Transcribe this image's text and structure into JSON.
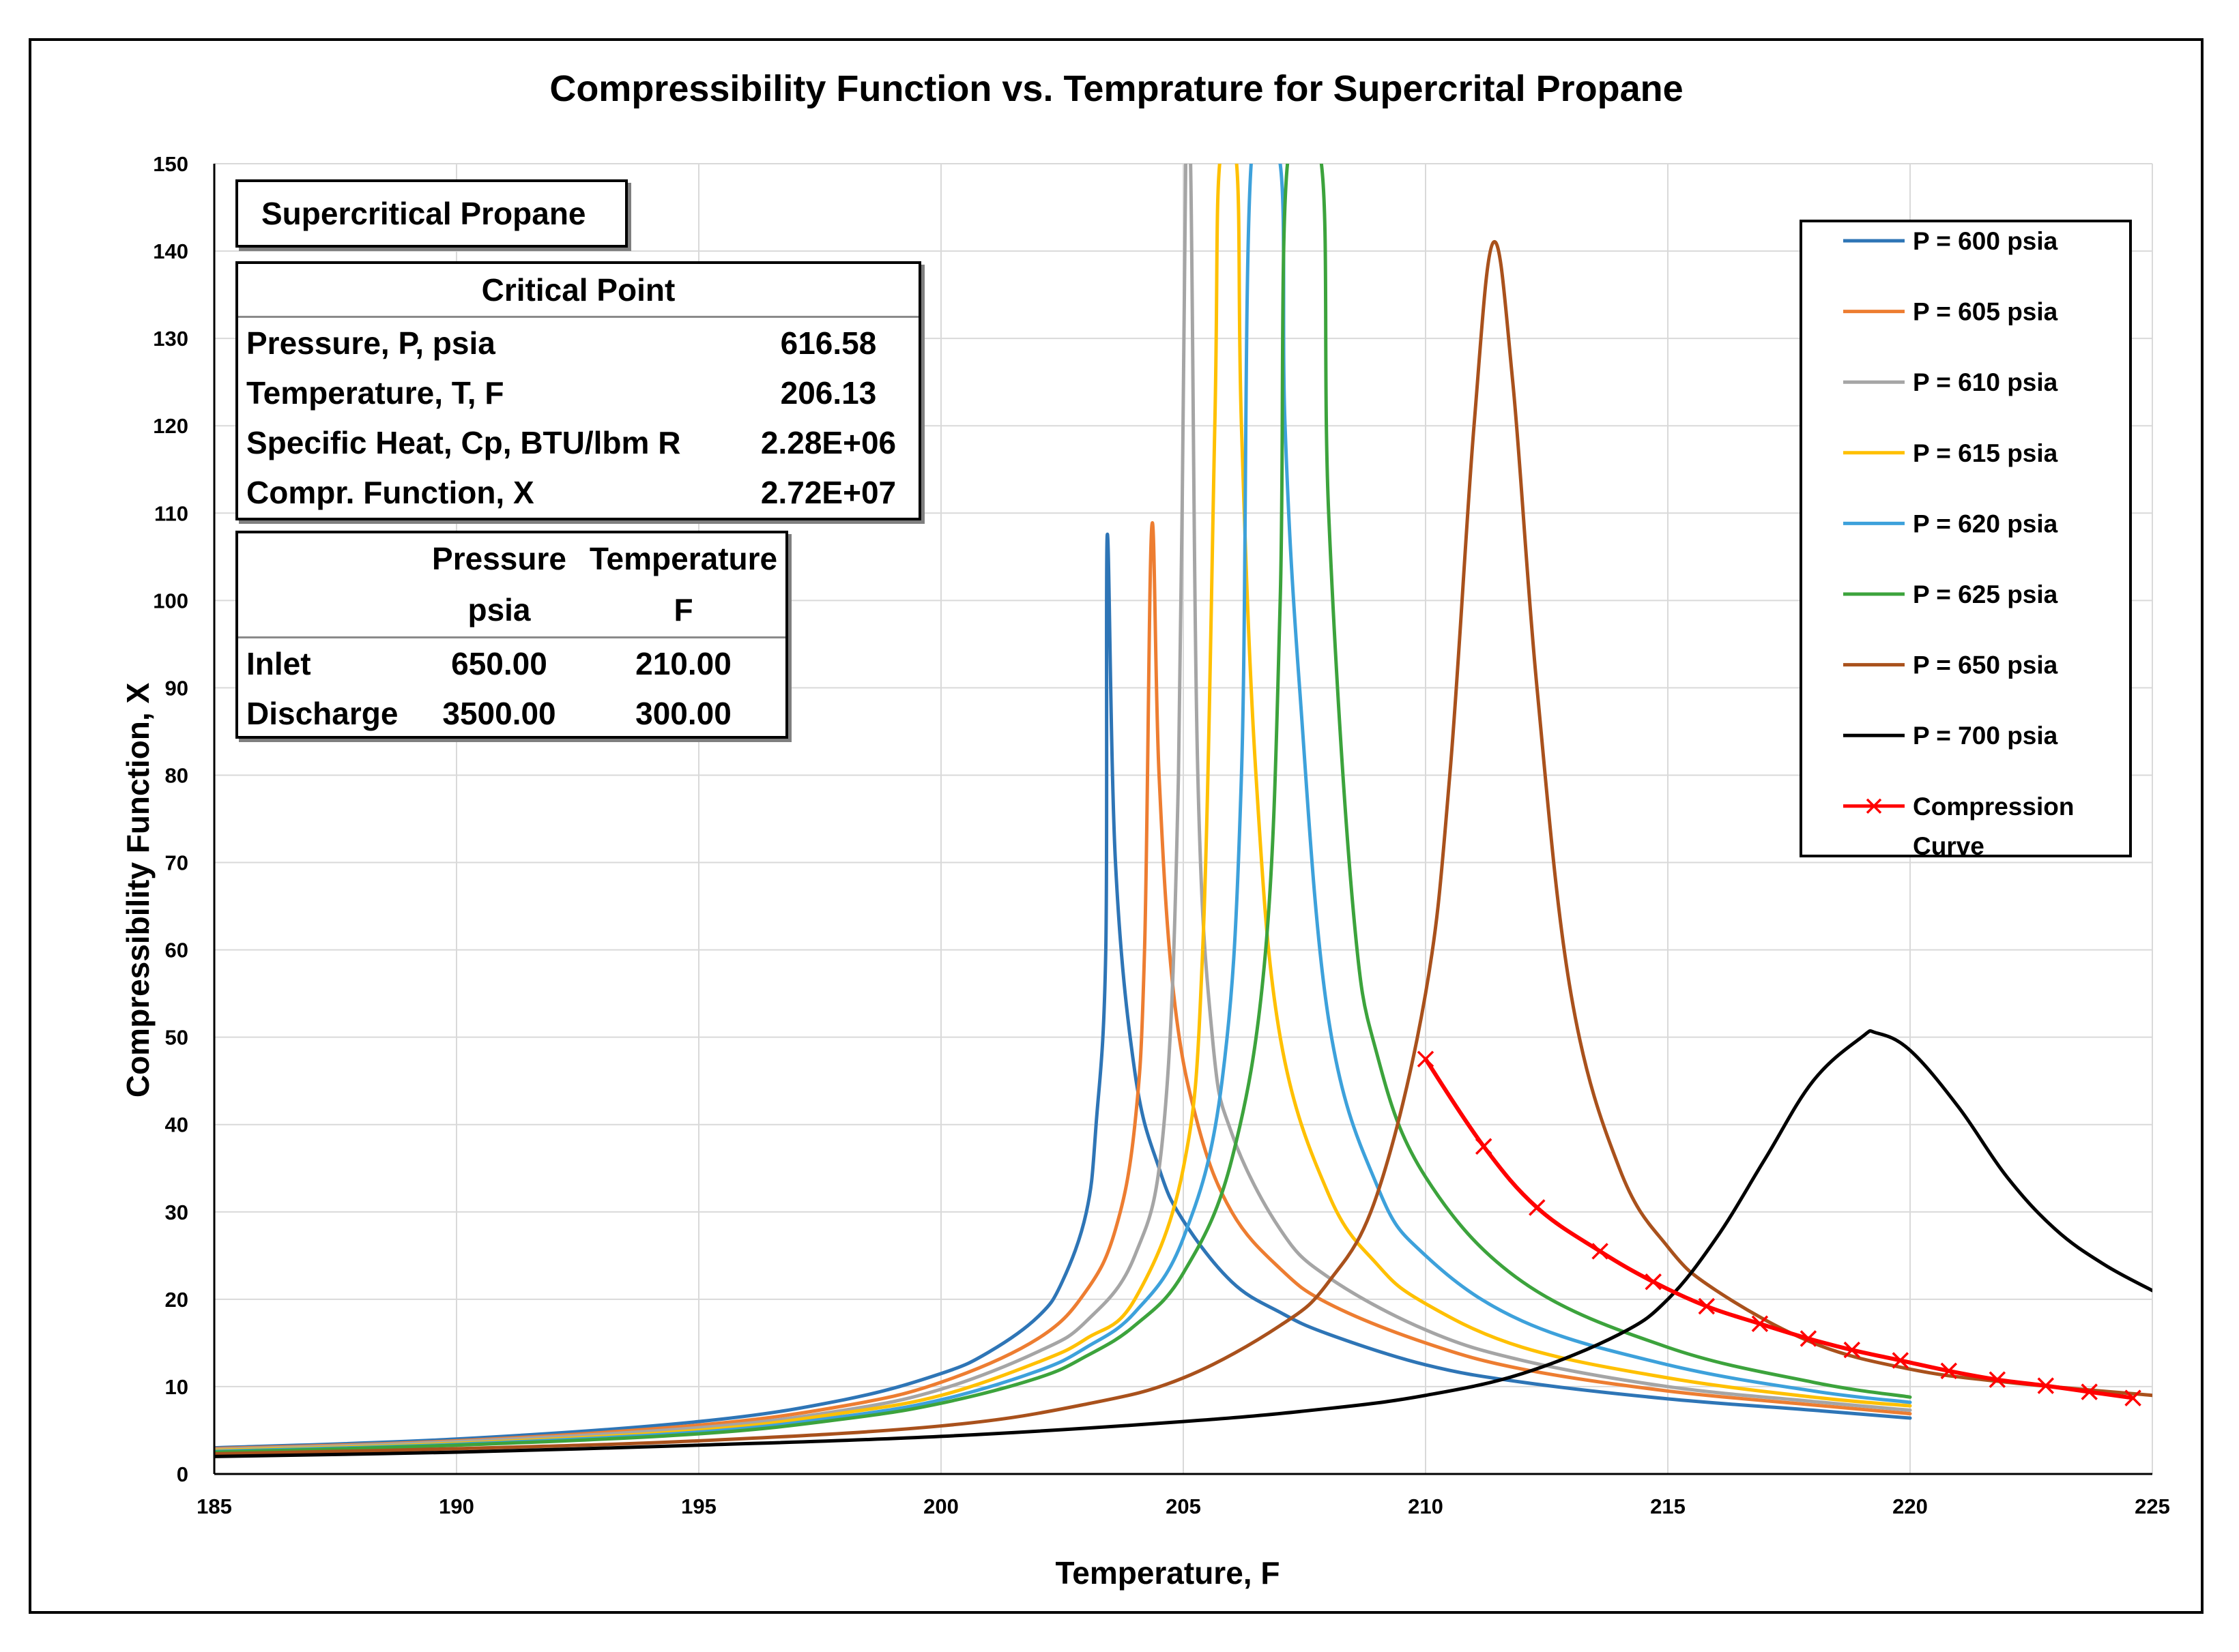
{
  "chart_data": {
    "type": "line",
    "title": "Compressibility Function vs. Temprature for Supercrital Propane",
    "xlabel": "Temperature, F",
    "ylabel": "Compressibility Function, X",
    "xlim": [
      185,
      225
    ],
    "ylim": [
      0,
      150
    ],
    "xticks": [
      185,
      190,
      195,
      200,
      205,
      210,
      215,
      220,
      225
    ],
    "yticks": [
      0,
      10,
      20,
      30,
      40,
      50,
      60,
      70,
      80,
      90,
      100,
      110,
      120,
      130,
      140,
      150
    ],
    "grid": true,
    "legend_position": "right",
    "series": [
      {
        "name": "P = 600 psia",
        "color": "#2E75B6",
        "x": [
          185,
          190,
          195,
          198,
          200,
          201,
          202,
          202.5,
          203,
          203.2,
          203.4,
          203.43,
          203.6,
          204,
          204.5,
          205,
          206,
          207,
          208,
          210,
          212,
          215,
          218,
          220
        ],
        "y": [
          3.0,
          4.0,
          6.0,
          8.5,
          11.5,
          14.0,
          18.0,
          22.0,
          30.0,
          40.0,
          60.0,
          107.5,
          70.0,
          46.0,
          35.0,
          29.0,
          22.0,
          18.5,
          16.0,
          12.5,
          10.5,
          8.6,
          7.3,
          6.4
        ]
      },
      {
        "name": "P = 605 psia",
        "color": "#ED7D31",
        "x": [
          185,
          190,
          195,
          198,
          200,
          202,
          203,
          203.6,
          204,
          204.2,
          204.35,
          204.5,
          204.8,
          205.3,
          206,
          207,
          208,
          210,
          212,
          215,
          218,
          220
        ],
        "y": [
          2.9,
          3.8,
          5.6,
          7.8,
          10.5,
          15.5,
          21.0,
          28.0,
          40.0,
          60.0,
          108.5,
          80.0,
          55.0,
          40.0,
          30.0,
          23.5,
          19.5,
          15.0,
          12.0,
          9.5,
          7.9,
          6.9
        ]
      },
      {
        "name": "P = 610 psia",
        "color": "#A5A5A5",
        "x": [
          185,
          190,
          195,
          198,
          200,
          202,
          203,
          204,
          204.6,
          204.9,
          205.05,
          205.15,
          205.3,
          205.6,
          206,
          207,
          208,
          210,
          212,
          215,
          218,
          220
        ],
        "y": [
          2.8,
          3.7,
          5.3,
          7.3,
          9.7,
          14.0,
          17.5,
          25.0,
          40.0,
          80.0,
          150,
          150,
          80.0,
          50.0,
          39.0,
          28.0,
          22.5,
          16.5,
          13.0,
          10.0,
          8.3,
          7.3
        ]
      },
      {
        "name": "P = 615 psia",
        "color": "#FFC000",
        "x": [
          185,
          190,
          195,
          198,
          200,
          202,
          203,
          204,
          205,
          205.4,
          205.65,
          205.75,
          206.1,
          206.2,
          206.5,
          207,
          208,
          209,
          210,
          212,
          215,
          218,
          220
        ],
        "y": [
          2.7,
          3.5,
          5.0,
          7.0,
          9.0,
          12.8,
          15.5,
          20.0,
          35.0,
          60.0,
          120.0,
          150,
          150,
          120.0,
          80.0,
          50.0,
          32.0,
          24.0,
          19.5,
          14.5,
          11.0,
          8.8,
          7.8
        ]
      },
      {
        "name": "P = 620 psia",
        "color": "#3DA1DB",
        "x": [
          185,
          190,
          195,
          198,
          200,
          202,
          203,
          204,
          205,
          205.8,
          206.2,
          206.4,
          207.0,
          207.1,
          207.4,
          208,
          209,
          210,
          212,
          215,
          218,
          220
        ],
        "y": [
          2.6,
          3.4,
          4.8,
          6.6,
          8.5,
          11.8,
          14.5,
          18.5,
          27.0,
          45.0,
          80.0,
          150,
          150,
          120.0,
          90.0,
          52.0,
          33.0,
          25.0,
          17.5,
          12.5,
          9.5,
          8.2
        ]
      },
      {
        "name": "P = 625 psia",
        "color": "#3CA33C",
        "x": [
          185,
          190,
          195,
          198,
          200,
          202,
          203,
          204,
          205,
          206,
          206.7,
          207.0,
          207.15,
          207.85,
          208.0,
          208.5,
          209,
          210,
          212,
          215,
          218,
          220
        ],
        "y": [
          2.5,
          3.3,
          4.6,
          6.3,
          8.1,
          11.0,
          13.5,
          17.0,
          23.0,
          36.0,
          60.0,
          100.0,
          150,
          150,
          110.0,
          65.0,
          48.0,
          34.0,
          22.0,
          14.5,
          10.5,
          8.8
        ]
      },
      {
        "name": "P = 650 psia",
        "color": "#A9511C",
        "x": [
          185,
          190,
          195,
          200,
          203,
          205,
          207,
          208,
          209,
          210,
          210.5,
          211.0,
          211.4,
          211.8,
          212.3,
          213,
          214,
          215,
          216,
          218,
          220,
          222,
          225
        ],
        "y": [
          2.3,
          2.9,
          3.8,
          5.5,
          8.0,
          11.0,
          17.0,
          22.0,
          32.0,
          55.0,
          80.0,
          120.0,
          141.0,
          125.0,
          90.0,
          55.0,
          35.0,
          26.0,
          21.0,
          15.0,
          12.0,
          10.5,
          9.0
        ]
      },
      {
        "name": "P = 700 psia",
        "color": "#000000",
        "x": [
          185,
          190,
          195,
          200,
          205,
          208,
          210,
          212,
          214,
          215,
          216,
          217,
          218,
          219,
          219.3,
          220,
          221,
          222,
          223,
          224,
          225
        ],
        "y": [
          2.0,
          2.5,
          3.3,
          4.3,
          6.0,
          7.5,
          9.0,
          11.5,
          16.0,
          20.0,
          27.0,
          36.0,
          45.0,
          50.0,
          50.5,
          48.5,
          42.0,
          34.0,
          28.0,
          24.0,
          21.0
        ]
      },
      {
        "name": "Compression Curve",
        "color": "#FF0000",
        "marker": "x",
        "x": [
          210.0,
          211.2,
          212.3,
          213.6,
          214.7,
          215.8,
          216.9,
          217.9,
          218.8,
          219.8,
          220.8,
          221.8,
          222.8,
          223.7,
          224.6
        ],
        "y": [
          47.5,
          37.5,
          30.5,
          25.5,
          22.0,
          19.2,
          17.2,
          15.5,
          14.2,
          13.0,
          11.8,
          10.8,
          10.1,
          9.4,
          8.7
        ]
      }
    ]
  },
  "info_boxes": {
    "title": "Supercritical Propane",
    "critical_point": {
      "header": "Critical Point",
      "rows": [
        {
          "label": "Pressure, P, psia",
          "value": "616.58"
        },
        {
          "label": "Temperature, T, F",
          "value": "206.13"
        },
        {
          "label": "Specific Heat, Cp, BTU/lbm R",
          "value": "2.28E+06"
        },
        {
          "label": "Compr. Function, X",
          "value": "2.72E+07"
        }
      ]
    },
    "conditions": {
      "col_headers": [
        "Pressure",
        "Temperature"
      ],
      "col_units": [
        "psia",
        "F"
      ],
      "rows": [
        {
          "label": "Inlet",
          "pressure": "650.00",
          "temperature": "210.00"
        },
        {
          "label": "Discharge",
          "pressure": "3500.00",
          "temperature": "300.00"
        }
      ]
    }
  }
}
